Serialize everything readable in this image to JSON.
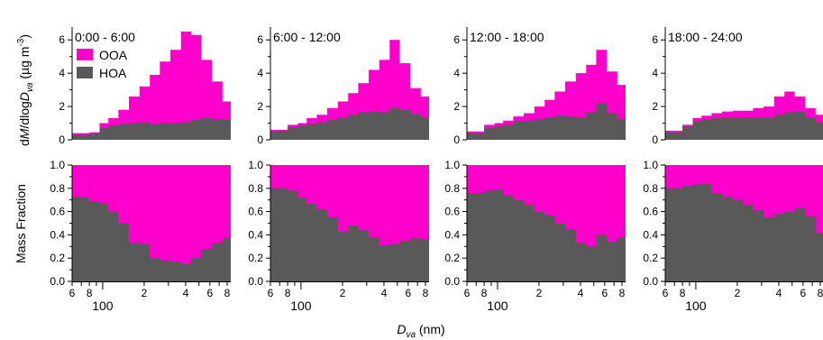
{
  "chart_data": {
    "type": "area",
    "note_style": "stepped stacked histograms, log x-axis",
    "colors": {
      "OOA": "#ff00cc",
      "HOA": "#595959"
    },
    "legend": {
      "entries": [
        "OOA",
        "HOA"
      ],
      "placement": "top-left"
    },
    "x_bins_nm": [
      60,
      70,
      80,
      95,
      110,
      130,
      155,
      185,
      220,
      260,
      310,
      370,
      440,
      520,
      620,
      740,
      850
    ],
    "x_axis": {
      "label": "D",
      "label_sub": "va",
      "label_unit": " (nm)",
      "scale": "log",
      "xlim": [
        60,
        850
      ],
      "minor_tick_values": [
        60,
        80,
        200,
        400,
        600,
        800
      ],
      "minor_tick_labels": [
        "6",
        "8",
        "2",
        "4",
        "6",
        "8"
      ],
      "major_tick_values": [
        100
      ],
      "major_tick_labels": [
        "100"
      ]
    },
    "top_y_axis": {
      "label_d": "d",
      "label_M": "M",
      "label_mid": "/dlog",
      "label_D": "D",
      "label_sub": "va",
      "label_unit": " (µg m",
      "label_sup": "-3",
      "label_close": ")",
      "ylim": [
        0,
        6.5
      ],
      "ticks": [
        "0",
        "2",
        "4",
        "6"
      ]
    },
    "bottom_y_axis": {
      "label": "Mass Fraction",
      "ylim": [
        0,
        1
      ],
      "ticks": [
        "0.0",
        "0.2",
        "0.4",
        "0.6",
        "0.8",
        "1.0"
      ]
    },
    "panels": [
      {
        "title": "0:00 - 6:00",
        "total": [
          0.4,
          0.4,
          0.45,
          1.0,
          1.3,
          1.8,
          2.6,
          3.2,
          3.9,
          4.7,
          5.4,
          6.5,
          6.3,
          4.8,
          3.5,
          2.3
        ],
        "HOA": [
          0.3,
          0.3,
          0.35,
          0.7,
          0.85,
          0.95,
          1.0,
          1.05,
          0.95,
          1.0,
          1.0,
          1.05,
          1.2,
          1.3,
          1.25,
          1.2
        ],
        "HOA_fraction": [
          0.73,
          0.72,
          0.69,
          0.67,
          0.6,
          0.5,
          0.33,
          0.32,
          0.2,
          0.18,
          0.17,
          0.15,
          0.2,
          0.28,
          0.33,
          0.37
        ]
      },
      {
        "title": "6:00 - 12:00",
        "total": [
          0.6,
          0.6,
          0.9,
          1.0,
          1.3,
          1.5,
          1.9,
          2.3,
          2.8,
          3.4,
          4.2,
          4.8,
          6.0,
          4.6,
          3.1,
          2.6
        ],
        "HOA": [
          0.5,
          0.55,
          0.75,
          0.85,
          0.95,
          1.05,
          1.2,
          1.3,
          1.5,
          1.65,
          1.7,
          1.65,
          1.9,
          1.8,
          1.55,
          1.35
        ],
        "HOA_fraction": [
          0.8,
          0.8,
          0.78,
          0.72,
          0.67,
          0.62,
          0.55,
          0.43,
          0.48,
          0.44,
          0.38,
          0.31,
          0.32,
          0.35,
          0.37,
          0.36
        ]
      },
      {
        "title": "12:00 - 18:00",
        "total": [
          0.5,
          0.5,
          0.9,
          1.0,
          1.15,
          1.4,
          1.6,
          2.0,
          2.4,
          2.9,
          3.5,
          4.0,
          4.5,
          5.4,
          4.1,
          3.3
        ],
        "HOA": [
          0.4,
          0.4,
          0.7,
          0.8,
          0.9,
          1.1,
          1.15,
          1.25,
          1.35,
          1.45,
          1.4,
          1.35,
          1.65,
          2.2,
          1.6,
          1.25
        ],
        "HOA_fraction": [
          0.76,
          0.76,
          0.78,
          0.79,
          0.74,
          0.7,
          0.66,
          0.6,
          0.57,
          0.5,
          0.45,
          0.33,
          0.3,
          0.4,
          0.34,
          0.38
        ]
      },
      {
        "title": "18:00 - 24:00",
        "total": [
          0.55,
          0.55,
          0.9,
          1.3,
          1.45,
          1.6,
          1.7,
          1.75,
          1.75,
          1.9,
          2.0,
          2.6,
          2.9,
          2.6,
          1.9,
          1.5
        ],
        "HOA": [
          0.45,
          0.45,
          0.8,
          1.1,
          1.2,
          1.3,
          1.35,
          1.35,
          1.35,
          1.35,
          1.3,
          1.5,
          1.65,
          1.7,
          1.35,
          1.05
        ],
        "HOA_fraction": [
          0.8,
          0.8,
          0.82,
          0.83,
          0.84,
          0.76,
          0.73,
          0.7,
          0.66,
          0.61,
          0.55,
          0.58,
          0.6,
          0.63,
          0.56,
          0.42
        ]
      }
    ]
  }
}
